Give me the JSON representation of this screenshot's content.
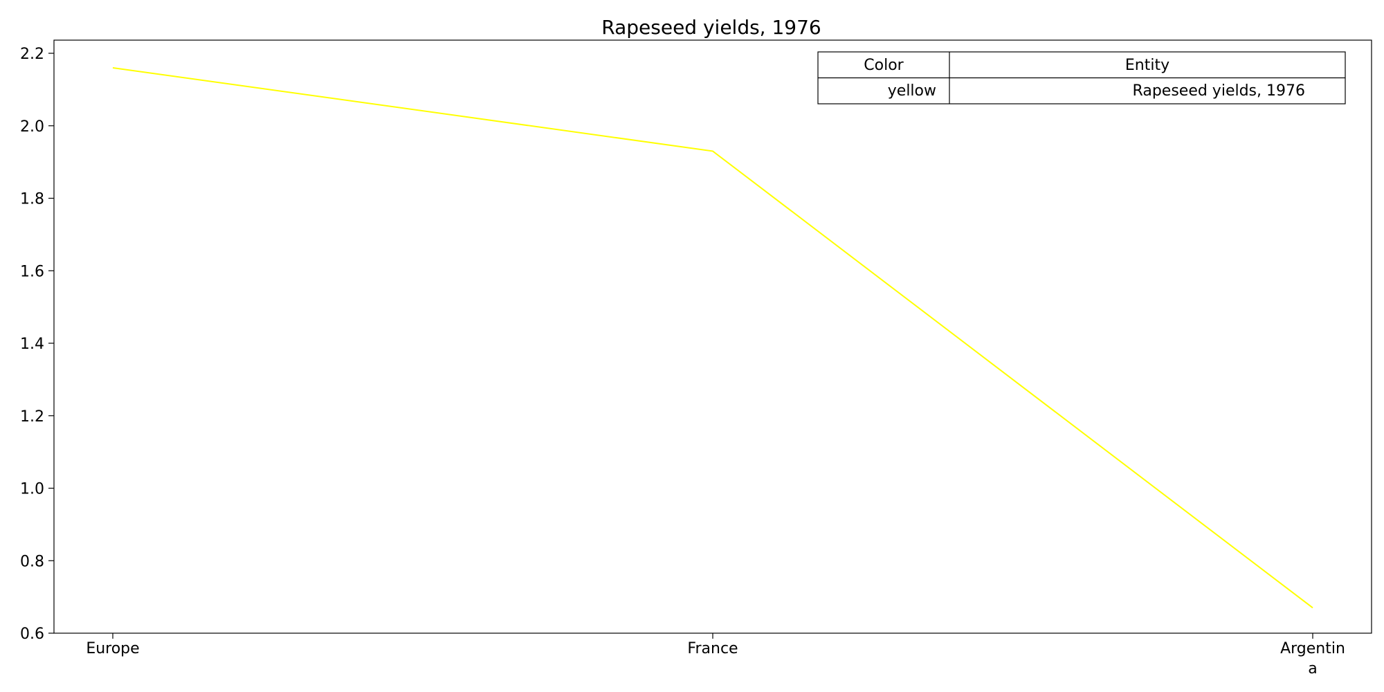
{
  "chart_data": {
    "type": "line",
    "title": "Rapeseed yields, 1976",
    "xlabel": "",
    "ylabel": "",
    "categories": [
      "Europe",
      "France",
      "Argentina"
    ],
    "category_display": [
      [
        "Europe"
      ],
      [
        "France"
      ],
      [
        "Argentin",
        "a"
      ]
    ],
    "series": [
      {
        "name": "Rapeseed yields, 1976",
        "color": "#ffff00",
        "values": [
          2.16,
          1.93,
          0.67
        ]
      }
    ],
    "ylim": [
      0.6,
      2.2
    ],
    "yticks": [
      "0.6",
      "0.8",
      "1.0",
      "1.2",
      "1.4",
      "1.6",
      "1.8",
      "2.0",
      "2.2"
    ],
    "grid": false,
    "legend": {
      "placement": "top-right",
      "headers": [
        "Color",
        "Entity"
      ],
      "rows": [
        [
          "yellow",
          "Rapeseed yields, 1976"
        ]
      ]
    }
  }
}
